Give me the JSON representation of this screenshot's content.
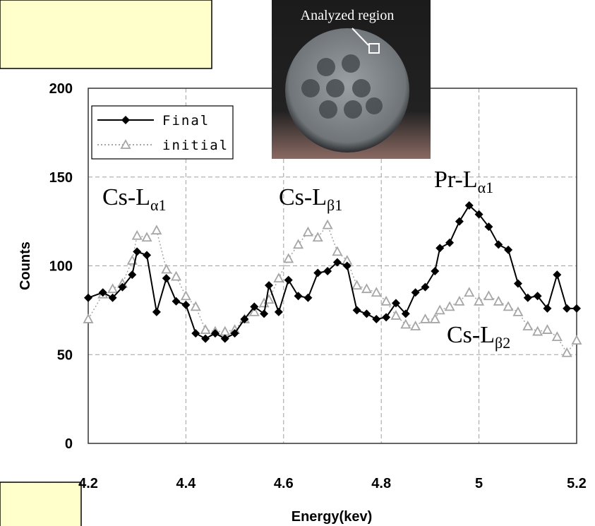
{
  "chart_data": {
    "type": "line",
    "x_label": "Energy(kev)",
    "y_label": "Counts",
    "xlim": [
      4.2,
      5.2
    ],
    "ylim": [
      0,
      200
    ],
    "xticks": [
      4.2,
      4.4,
      4.6,
      4.8,
      5,
      5.2
    ],
    "yticks": [
      0,
      50,
      100,
      150,
      200
    ],
    "grid": true,
    "legend": "upper left",
    "inset_label": "Analyzed region",
    "x": [
      4.2,
      4.23,
      4.25,
      4.27,
      4.29,
      4.3,
      4.32,
      4.34,
      4.36,
      4.38,
      4.4,
      4.42,
      4.44,
      4.46,
      4.48,
      4.5,
      4.52,
      4.54,
      4.56,
      4.57,
      4.59,
      4.61,
      4.63,
      4.65,
      4.67,
      4.69,
      4.71,
      4.73,
      4.75,
      4.77,
      4.79,
      4.81,
      4.83,
      4.85,
      4.87,
      4.89,
      4.91,
      4.92,
      4.94,
      4.96,
      4.98,
      5.0,
      5.02,
      5.04,
      5.06,
      5.08,
      5.1,
      5.12,
      5.14,
      5.16,
      5.18,
      5.2
    ],
    "series": [
      {
        "name": "Final",
        "color": "#000000",
        "marker": "diamond",
        "line_style": "solid",
        "values": [
          82,
          85,
          82,
          88,
          95,
          108,
          106,
          74,
          93,
          80,
          78,
          62,
          59,
          62,
          59,
          62,
          70,
          77,
          73,
          89,
          74,
          92,
          83,
          82,
          96,
          97,
          102,
          100,
          75,
          73,
          70,
          71,
          79,
          73,
          85,
          88,
          97,
          110,
          113,
          125,
          134,
          129,
          122,
          112,
          109,
          90,
          82,
          83,
          76,
          95,
          76,
          76
        ]
      },
      {
        "name": "initial",
        "color": "#a6a6a6",
        "marker": "triangle",
        "line_style": "dotted",
        "values": [
          70,
          84,
          87,
          90,
          103,
          117,
          116,
          120,
          98,
          94,
          83,
          77,
          64,
          63,
          63,
          64,
          70,
          74,
          79,
          81,
          93,
          104,
          112,
          119,
          116,
          123,
          108,
          103,
          89,
          87,
          85,
          80,
          72,
          67,
          66,
          70,
          70,
          75,
          77,
          80,
          85,
          80,
          83,
          80,
          77,
          74,
          66,
          63,
          64,
          60,
          51,
          58
        ]
      }
    ],
    "annotations": [
      {
        "text": "Cs-L",
        "subscript": "α1"
      },
      {
        "text": "Cs-L",
        "subscript": "β1"
      },
      {
        "text": "Pr-L",
        "subscript": "α1"
      },
      {
        "text": "Cs-L",
        "subscript": "β2"
      }
    ]
  }
}
